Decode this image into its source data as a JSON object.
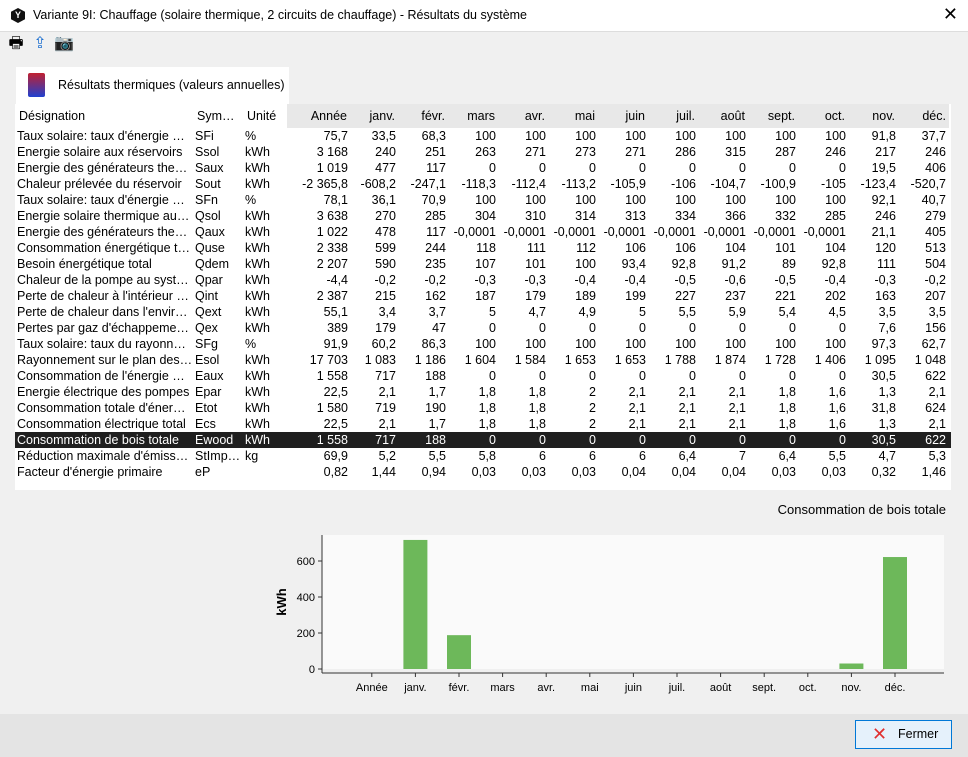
{
  "window": {
    "title": "Variante 9I: Chauffage (solaire thermique, 2 circuits de chauffage) - Résultats du système",
    "close": "✕"
  },
  "toolbar": [
    {
      "icon": "print-icon",
      "glyph": "🖶"
    },
    {
      "icon": "export-icon",
      "glyph": "⇪"
    },
    {
      "icon": "camera-icon",
      "glyph": "📷"
    }
  ],
  "tab": {
    "label": "Résultats thermiques (valeurs annuelles)"
  },
  "table": {
    "headers": [
      "Désignation",
      "Sym…",
      "Unité",
      "Année",
      "janv.",
      "févr.",
      "mars",
      "avr.",
      "mai",
      "juin",
      "juil.",
      "août",
      "sept.",
      "oct.",
      "nov.",
      "déc."
    ],
    "rows": [
      [
        "Taux solaire: taux d'énergie …",
        "SFi",
        "%",
        "75,7",
        "33,5",
        "68,3",
        "100",
        "100",
        "100",
        "100",
        "100",
        "100",
        "100",
        "100",
        "91,8",
        "37,7"
      ],
      [
        "Energie solaire aux réservoirs",
        "Ssol",
        "kWh",
        "3 168",
        "240",
        "251",
        "263",
        "271",
        "273",
        "271",
        "286",
        "315",
        "287",
        "246",
        "217",
        "246"
      ],
      [
        "Energie des générateurs the…",
        "Saux",
        "kWh",
        "1 019",
        "477",
        "117",
        "0",
        "0",
        "0",
        "0",
        "0",
        "0",
        "0",
        "0",
        "19,5",
        "406"
      ],
      [
        "Chaleur prélevée du réservoir",
        "Sout",
        "kWh",
        "-2 365,8",
        "-608,2",
        "-247,1",
        "-118,3",
        "-112,4",
        "-113,2",
        "-105,9",
        "-106",
        "-104,7",
        "-100,9",
        "-105",
        "-123,4",
        "-520,7"
      ],
      [
        "Taux solaire: taux d'énergie …",
        "SFn",
        "%",
        "78,1",
        "36,1",
        "70,9",
        "100",
        "100",
        "100",
        "100",
        "100",
        "100",
        "100",
        "100",
        "92,1",
        "40,7"
      ],
      [
        "Energie solaire thermique au…",
        "Qsol",
        "kWh",
        "3 638",
        "270",
        "285",
        "304",
        "310",
        "314",
        "313",
        "334",
        "366",
        "332",
        "285",
        "246",
        "279"
      ],
      [
        "Energie des générateurs the…",
        "Qaux",
        "kWh",
        "1 022",
        "478",
        "117",
        "-0,0001",
        "-0,0001",
        "-0,0001",
        "-0,0001",
        "-0,0001",
        "-0,0001",
        "-0,0001",
        "-0,0001",
        "21,1",
        "405"
      ],
      [
        "Consommation énergétique t…",
        "Quse",
        "kWh",
        "2 338",
        "599",
        "244",
        "118",
        "111",
        "112",
        "106",
        "106",
        "104",
        "101",
        "104",
        "120",
        "513"
      ],
      [
        "Besoin énergétique total",
        "Qdem",
        "kWh",
        "2 207",
        "590",
        "235",
        "107",
        "101",
        "100",
        "93,4",
        "92,8",
        "91,2",
        "89",
        "92,8",
        "111",
        "504"
      ],
      [
        "Chaleur de la pompe au syst…",
        "Qpar",
        "kWh",
        "-4,4",
        "-0,2",
        "-0,2",
        "-0,3",
        "-0,3",
        "-0,4",
        "-0,4",
        "-0,5",
        "-0,6",
        "-0,5",
        "-0,4",
        "-0,3",
        "-0,2"
      ],
      [
        "Perte de chaleur à l'intérieur …",
        "Qint",
        "kWh",
        "2 387",
        "215",
        "162",
        "187",
        "179",
        "189",
        "199",
        "227",
        "237",
        "221",
        "202",
        "163",
        "207"
      ],
      [
        "Perte de chaleur dans l'envir…",
        "Qext",
        "kWh",
        "55,1",
        "3,4",
        "3,7",
        "5",
        "4,7",
        "4,9",
        "5",
        "5,5",
        "5,9",
        "5,4",
        "4,5",
        "3,5",
        "3,5"
      ],
      [
        "Pertes par gaz d'échappeme…",
        "Qex",
        "kWh",
        "389",
        "179",
        "47",
        "0",
        "0",
        "0",
        "0",
        "0",
        "0",
        "0",
        "0",
        "7,6",
        "156"
      ],
      [
        "Taux solaire: taux du rayonn…",
        "SFg",
        "%",
        "91,9",
        "60,2",
        "86,3",
        "100",
        "100",
        "100",
        "100",
        "100",
        "100",
        "100",
        "100",
        "97,3",
        "62,7"
      ],
      [
        "Rayonnement sur le plan des…",
        "Esol",
        "kWh",
        "17 703",
        "1 083",
        "1 186",
        "1 604",
        "1 584",
        "1 653",
        "1 653",
        "1 788",
        "1 874",
        "1 728",
        "1 406",
        "1 095",
        "1 048"
      ],
      [
        "Consommation de l'énergie …",
        "Eaux",
        "kWh",
        "1 558",
        "717",
        "188",
        "0",
        "0",
        "0",
        "0",
        "0",
        "0",
        "0",
        "0",
        "30,5",
        "622"
      ],
      [
        "Energie électrique des pompes",
        "Epar",
        "kWh",
        "22,5",
        "2,1",
        "1,7",
        "1,8",
        "1,8",
        "2",
        "2,1",
        "2,1",
        "2,1",
        "1,8",
        "1,6",
        "1,3",
        "2,1"
      ],
      [
        "Consommation totale d'éner…",
        "Etot",
        "kWh",
        "1 580",
        "719",
        "190",
        "1,8",
        "1,8",
        "2",
        "2,1",
        "2,1",
        "2,1",
        "1,8",
        "1,6",
        "31,8",
        "624"
      ],
      [
        "Consommation électrique total",
        "Ecs",
        "kWh",
        "22,5",
        "2,1",
        "1,7",
        "1,8",
        "1,8",
        "2",
        "2,1",
        "2,1",
        "2,1",
        "1,8",
        "1,6",
        "1,3",
        "2,1"
      ],
      [
        "Consommation de bois totale",
        "Ewood",
        "kWh",
        "1 558",
        "717",
        "188",
        "0",
        "0",
        "0",
        "0",
        "0",
        "0",
        "0",
        "0",
        "30,5",
        "622"
      ],
      [
        "Réduction maximale d'émiss…",
        "StImp…",
        "kg",
        "69,9",
        "5,2",
        "5,5",
        "5,8",
        "6",
        "6",
        "6",
        "6,4",
        "7",
        "6,4",
        "5,5",
        "4,7",
        "5,3"
      ],
      [
        "Facteur d'énergie primaire",
        "eP",
        "",
        "0,82",
        "1,44",
        "0,94",
        "0,03",
        "0,03",
        "0,03",
        "0,04",
        "0,04",
        "0,04",
        "0,03",
        "0,03",
        "0,32",
        "1,46"
      ]
    ],
    "selected_row": 19
  },
  "chart_data": {
    "type": "bar",
    "title": "Consommation de bois totale",
    "ylabel": "kWh",
    "xlabel": "",
    "categories": [
      "Année",
      "janv.",
      "févr.",
      "mars",
      "avr.",
      "mai",
      "juin",
      "juil.",
      "août",
      "sept.",
      "oct.",
      "nov.",
      "déc."
    ],
    "values": [
      null,
      717,
      188,
      0,
      0,
      0,
      0,
      0,
      0,
      0,
      0,
      30.5,
      622
    ],
    "yticks": [
      0,
      200,
      400,
      600
    ],
    "ylim": [
      0,
      750
    ],
    "grid": false,
    "color": "#6db85a"
  },
  "footer": {
    "close_label": "Fermer"
  }
}
